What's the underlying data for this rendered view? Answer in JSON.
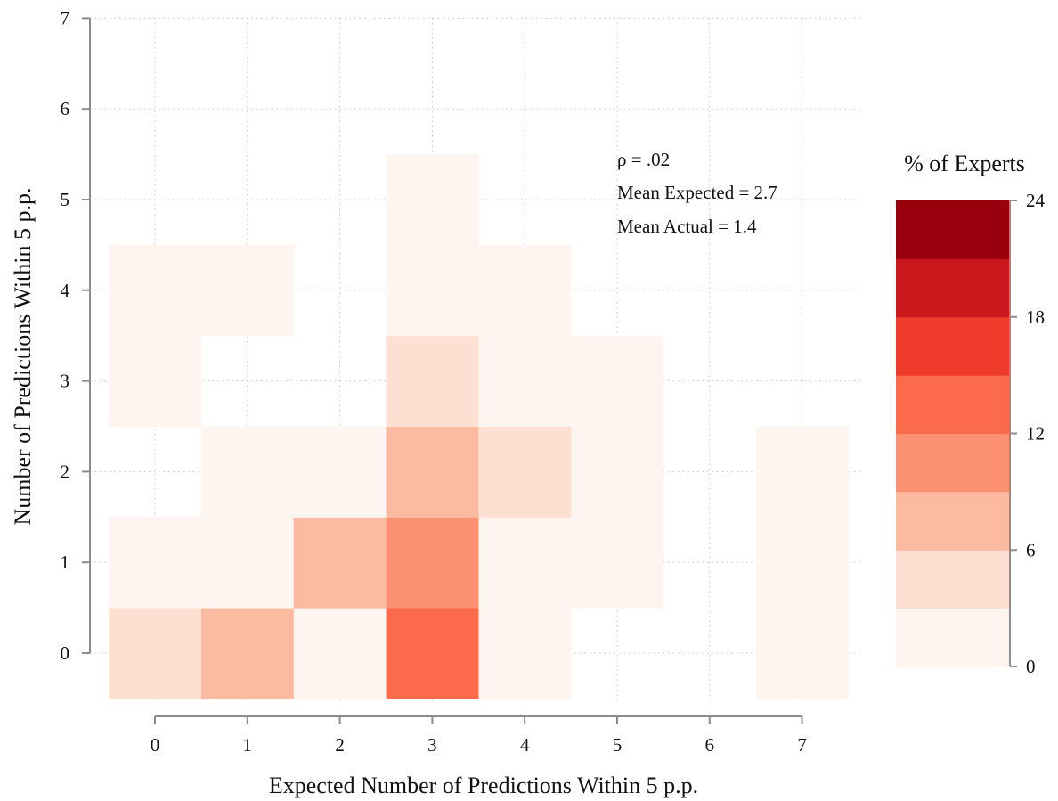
{
  "chart_data": {
    "type": "heatmap",
    "xlabel": "Expected Number of Predictions Within 5 p.p.",
    "ylabel": "Number of Predictions Within 5 p.p.",
    "xlim": [
      -0.5,
      7.5
    ],
    "ylim": [
      -0.5,
      7
    ],
    "x_ticks": [
      "0",
      "1",
      "2",
      "3",
      "4",
      "5",
      "6",
      "7"
    ],
    "y_ticks": [
      "0",
      "1",
      "2",
      "3",
      "4",
      "5",
      "6",
      "7"
    ],
    "grid": true,
    "annotations": [
      "ρ = .02",
      "Mean Expected = 2.7",
      "Mean Actual = 1.4"
    ],
    "cells": [
      {
        "x": 0,
        "y": 0,
        "value": 4
      },
      {
        "x": 1,
        "y": 0,
        "value": 8
      },
      {
        "x": 2,
        "y": 0,
        "value": 1
      },
      {
        "x": 3,
        "y": 0,
        "value": 14
      },
      {
        "x": 4,
        "y": 0,
        "value": 1
      },
      {
        "x": 7,
        "y": 0,
        "value": 1
      },
      {
        "x": 0,
        "y": 1,
        "value": 1
      },
      {
        "x": 1,
        "y": 1,
        "value": 1
      },
      {
        "x": 2,
        "y": 1,
        "value": 7
      },
      {
        "x": 3,
        "y": 1,
        "value": 10
      },
      {
        "x": 4,
        "y": 1,
        "value": 1
      },
      {
        "x": 5,
        "y": 1,
        "value": 1
      },
      {
        "x": 7,
        "y": 1,
        "value": 1
      },
      {
        "x": 1,
        "y": 2,
        "value": 1
      },
      {
        "x": 2,
        "y": 2,
        "value": 1
      },
      {
        "x": 3,
        "y": 2,
        "value": 7
      },
      {
        "x": 4,
        "y": 2,
        "value": 4
      },
      {
        "x": 5,
        "y": 2,
        "value": 1
      },
      {
        "x": 7,
        "y": 2,
        "value": 1
      },
      {
        "x": 0,
        "y": 3,
        "value": 1
      },
      {
        "x": 3,
        "y": 3,
        "value": 4
      },
      {
        "x": 4,
        "y": 3,
        "value": 1
      },
      {
        "x": 5,
        "y": 3,
        "value": 1
      },
      {
        "x": 0,
        "y": 4,
        "value": 1
      },
      {
        "x": 1,
        "y": 4,
        "value": 1
      },
      {
        "x": 3,
        "y": 4,
        "value": 1
      },
      {
        "x": 4,
        "y": 4,
        "value": 1
      },
      {
        "x": 3,
        "y": 5,
        "value": 1
      }
    ],
    "colorbar": {
      "title": "% of Experts",
      "ticks": [
        "0",
        "6",
        "12",
        "18",
        "24"
      ],
      "range": [
        0,
        24
      ],
      "bin_size": 3,
      "colors": [
        "#fff5f0",
        "#fee0d2",
        "#fcbba1",
        "#fc9272",
        "#fb6a4a",
        "#ef3b2c",
        "#cb181d",
        "#99000d"
      ]
    }
  }
}
